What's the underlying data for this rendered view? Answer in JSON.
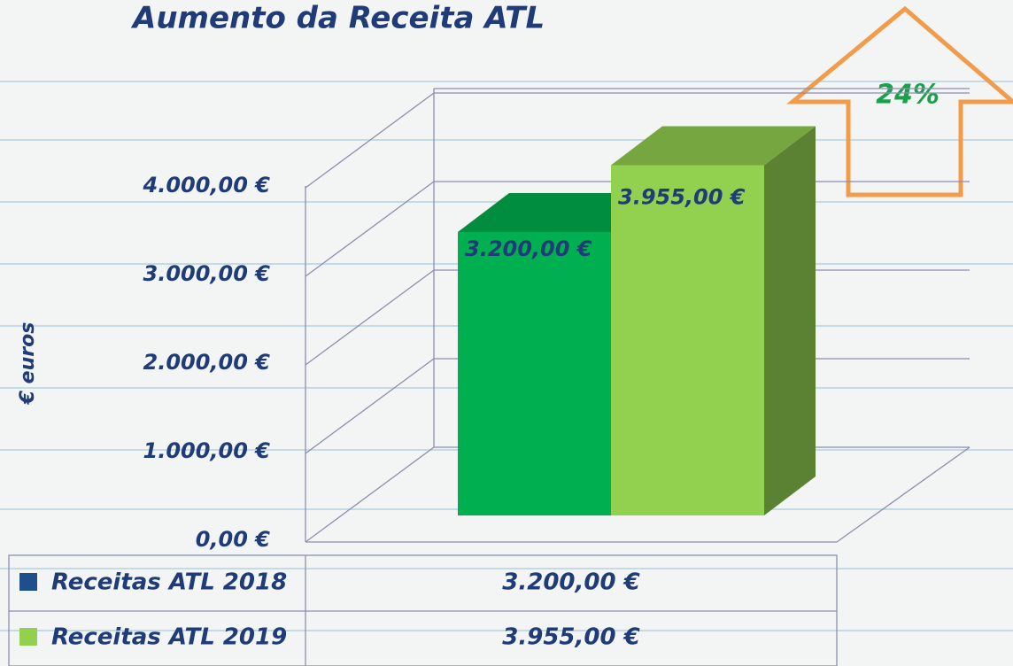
{
  "chart_data": {
    "type": "bar",
    "title": "Aumento da Receita ATL",
    "y_label": "€ euros",
    "annotation": "24%",
    "categories": [
      null
    ],
    "series": [
      {
        "name": "Receitas ATL 2018",
        "color": "#00b050",
        "legend_color": "#1f4e8c",
        "values": [
          3200
        ],
        "value_labels": [
          "3.200,00 €"
        ]
      },
      {
        "name": "Receitas ATL 2019",
        "color": "#92d050",
        "legend_color": "#92d050",
        "values": [
          3955
        ],
        "value_labels": [
          "3.955,00 €"
        ]
      }
    ],
    "ylim": [
      0,
      4000
    ],
    "yticks": [
      {
        "value": 0,
        "label": "0,00 €"
      },
      {
        "value": 1000,
        "label": "1.000,00 €"
      },
      {
        "value": 2000,
        "label": "2.000,00 €"
      },
      {
        "value": 3000,
        "label": "3.000,00 €"
      },
      {
        "value": 4000,
        "label": "4.000,00 €"
      }
    ],
    "grid": true,
    "data_table": true
  }
}
